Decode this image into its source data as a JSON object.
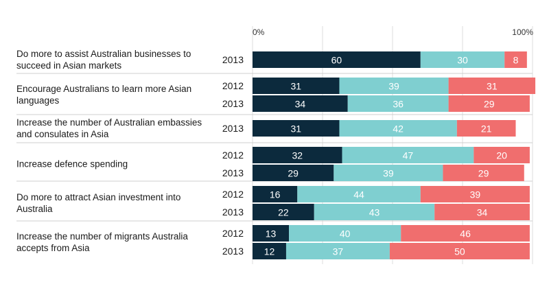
{
  "chart_data": {
    "type": "bar",
    "orientation": "horizontal",
    "stacked": true,
    "title": "",
    "xlabel": "",
    "ylabel": "",
    "xlim": [
      0,
      100
    ],
    "x_tick_labels": [
      {
        "value": 0,
        "label": "0%"
      },
      {
        "value": 100,
        "label": "100%"
      }
    ],
    "gridlines_at": [
      0,
      25,
      50,
      75,
      100
    ],
    "legend": "none",
    "colors": [
      "#0c2a3d",
      "#7fcfd0",
      "#f06e6e"
    ],
    "label_colors": [
      "#ffffff",
      "#ffffff",
      "#ffffff"
    ],
    "groups": [
      {
        "question": [
          "Do more to assist Australian businesses to",
          "succeed in Asian markets"
        ],
        "rows": [
          {
            "year": "2013",
            "values": [
              60,
              30,
              8
            ]
          }
        ]
      },
      {
        "question": [
          "Encourage Australians to learn more Asian",
          "languages"
        ],
        "rows": [
          {
            "year": "2012",
            "values": [
              31,
              39,
              31
            ]
          },
          {
            "year": "2013",
            "values": [
              34,
              36,
              29
            ]
          }
        ]
      },
      {
        "question": [
          "Increase the number of Australian embassies",
          "and consulates in Asia"
        ],
        "rows": [
          {
            "year": "2013",
            "values": [
              31,
              42,
              21
            ]
          }
        ]
      },
      {
        "question": [
          "Increase defence spending"
        ],
        "rows": [
          {
            "year": "2012",
            "values": [
              32,
              47,
              20
            ]
          },
          {
            "year": "2013",
            "values": [
              29,
              39,
              29
            ]
          }
        ]
      },
      {
        "question": [
          "Do more to attract Asian investment into",
          "Australia"
        ],
        "rows": [
          {
            "year": "2012",
            "values": [
              16,
              44,
              39
            ]
          },
          {
            "year": "2013",
            "values": [
              22,
              43,
              34
            ]
          }
        ]
      },
      {
        "question": [
          "Increase the number of migrants Australia",
          "accepts from Asia"
        ],
        "rows": [
          {
            "year": "2012",
            "values": [
              13,
              40,
              46
            ]
          },
          {
            "year": "2013",
            "values": [
              12,
              37,
              50
            ]
          }
        ]
      }
    ]
  }
}
